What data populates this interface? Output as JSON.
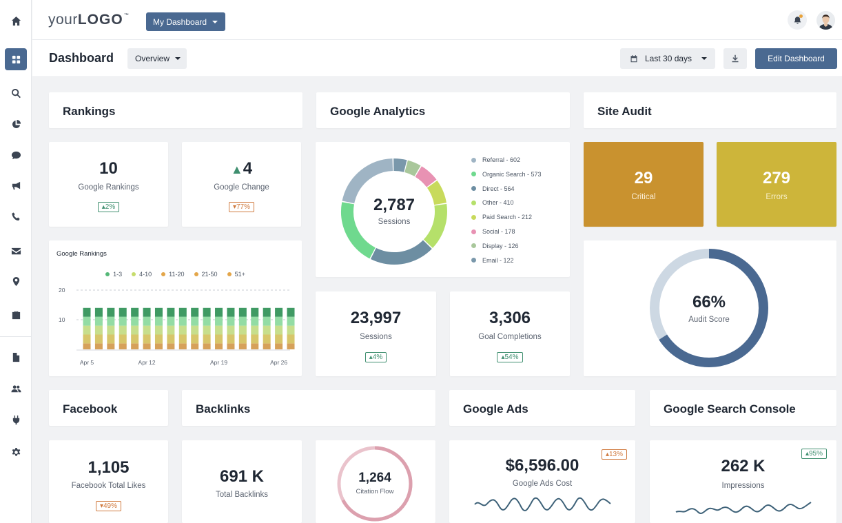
{
  "brand": {
    "logo_light": "your",
    "logo_bold": "LOGO",
    "logo_tm": "™",
    "accent": "#4a6991"
  },
  "topbar": {
    "dashboard_select": "My Dashboard"
  },
  "header": {
    "title": "Dashboard",
    "view_select": "Overview",
    "date_range": "Last 30 days",
    "edit_label": "Edit Dashboard"
  },
  "sidebar": {
    "icons": [
      "home-icon",
      "grid-icon",
      "search-icon",
      "pie-chart-icon",
      "chat-icon",
      "megaphone-icon",
      "phone-icon",
      "mail-icon",
      "location-pin-icon",
      "briefcase-icon",
      "document-icon",
      "users-icon",
      "plug-icon",
      "gear-icon"
    ]
  },
  "rankings": {
    "title": "Rankings",
    "google_rankings": {
      "value": "10",
      "label": "Google Rankings",
      "badge": "2%"
    },
    "google_change": {
      "value": "4",
      "label": "Google Change",
      "badge": "77%"
    },
    "chart_title": "Google Rankings"
  },
  "analytics": {
    "title": "Google Analytics",
    "sessions_center": {
      "value": "2,787",
      "label": "Sessions"
    },
    "sessions": {
      "value": "23,997",
      "label": "Sessions",
      "badge": "4%"
    },
    "goals": {
      "value": "3,306",
      "label": "Goal Completions",
      "badge": "54%"
    }
  },
  "site_audit": {
    "title": "Site Audit",
    "critical": {
      "value": "29",
      "label": "Critical",
      "color": "#c9922f"
    },
    "errors": {
      "value": "279",
      "label": "Errors",
      "color": "#cdb53a"
    },
    "score": {
      "value": "66%",
      "label": "Audit Score",
      "fraction": 0.66
    }
  },
  "facebook": {
    "title": "Facebook",
    "value": "1,105",
    "label": "Facebook Total Likes",
    "badge": "49%"
  },
  "backlinks": {
    "title": "Backlinks",
    "total": {
      "value": "691 K",
      "label": "Total Backlinks"
    },
    "citation": {
      "value": "1,264",
      "label": "Citation Flow"
    }
  },
  "google_ads": {
    "title": "Google Ads",
    "value": "$6,596.00",
    "label": "Google Ads Cost",
    "badge": "13%"
  },
  "search_console": {
    "title": "Google Search Console",
    "value": "262 K",
    "label": "Impressions",
    "badge": "95%"
  },
  "chart_data": [
    {
      "type": "pie",
      "title": "",
      "categories": [
        "Referral - 602",
        "Organic Search - 573",
        "Direct - 564",
        "Other - 410",
        "Paid Search - 212",
        "Social - 178",
        "Display - 126",
        "Email - 122"
      ],
      "values": [
        602,
        573,
        564,
        410,
        212,
        178,
        126,
        122
      ],
      "colors": [
        "#9fb4c4",
        "#6fd98e",
        "#6d8ea2",
        "#b5e06a",
        "#c8da5c",
        "#e892b3",
        "#a9c79b",
        "#7a98ab"
      ]
    },
    {
      "type": "bar",
      "title": "Google Rankings",
      "categories": [
        "Apr 5",
        "",
        "",
        "",
        "",
        "Apr 12",
        "",
        "",
        "",
        "",
        "",
        "Apr 19",
        "",
        "",
        "",
        "",
        "Apr 26",
        ""
      ],
      "x_tick_labels": [
        "Apr 5",
        "Apr 12",
        "Apr 19",
        "Apr 26"
      ],
      "y_ticks": [
        "20",
        "10"
      ],
      "ylim": [
        0,
        20
      ],
      "stacked": true,
      "series": [
        {
          "name": "51+",
          "color": "#d6a15a",
          "values": [
            2,
            2,
            2,
            2,
            2,
            2,
            2,
            2,
            2,
            2,
            2,
            2,
            2,
            2,
            2,
            2,
            2,
            2
          ]
        },
        {
          "name": "21-50",
          "color": "#d7c66a",
          "values": [
            3,
            3,
            3,
            3,
            3,
            3,
            3,
            3,
            3,
            3,
            3,
            3,
            3,
            3,
            3,
            3,
            3,
            3
          ]
        },
        {
          "name": "11-20",
          "color": "#c7de8c",
          "values": [
            3,
            3,
            3,
            3,
            3,
            3,
            3,
            3,
            3,
            3,
            3,
            3,
            3,
            3,
            3,
            3,
            3,
            3
          ]
        },
        {
          "name": "4-10",
          "color": "#93dca4",
          "values": [
            3,
            3,
            3,
            3,
            3,
            3,
            3,
            3,
            3,
            3,
            3,
            3,
            3,
            3,
            3,
            3,
            3,
            3
          ]
        },
        {
          "name": "1-3",
          "color": "#3f9a63",
          "values": [
            3,
            3,
            3,
            3,
            3,
            3,
            3,
            3,
            3,
            3,
            3,
            3,
            3,
            3,
            3,
            3,
            3,
            3
          ]
        }
      ],
      "legend_order": [
        "1-3",
        "4-10",
        "11-20",
        "21-50",
        "51+"
      ],
      "legend_colors": [
        "#55b878",
        "#c6dc6c",
        "#e3a64a",
        "#e3a64a",
        "#e3a64a"
      ]
    }
  ]
}
